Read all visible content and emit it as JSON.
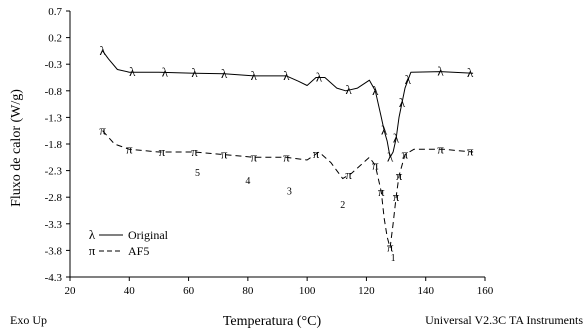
{
  "chart_data": {
    "type": "line",
    "xlabel": "Temperatura (°C)",
    "ylabel": "Fluxo de calor (W/g)",
    "xlim": [
      20,
      160
    ],
    "ylim": [
      -4.3,
      0.7
    ],
    "x_ticks": [
      20,
      40,
      60,
      80,
      100,
      120,
      140,
      160
    ],
    "y_ticks": [
      0.7,
      0.2,
      -0.3,
      -0.8,
      -1.3,
      -1.8,
      -2.3,
      -2.8,
      -3.3,
      -3.8,
      -4.3
    ],
    "grid": false,
    "legend_position": "bottom-left",
    "series": [
      {
        "name": "Original",
        "marker": "λ",
        "line_style": "solid",
        "x": [
          31,
          33,
          36,
          40,
          50,
          62,
          72,
          82,
          93,
          97,
          100,
          103,
          106,
          110,
          113,
          117,
          121,
          123,
          125,
          126,
          127,
          128,
          129,
          130,
          131,
          133,
          135,
          145,
          156
        ],
        "y": [
          -0.05,
          -0.2,
          -0.4,
          -0.45,
          -0.45,
          -0.47,
          -0.48,
          -0.52,
          -0.52,
          -0.62,
          -0.7,
          -0.55,
          -0.55,
          -0.75,
          -0.8,
          -0.75,
          -0.6,
          -0.8,
          -1.3,
          -1.55,
          -1.75,
          -2.05,
          -1.95,
          -1.7,
          -1.3,
          -0.75,
          -0.45,
          -0.44,
          -0.47
        ],
        "marker_x": [
          31,
          41,
          52,
          62,
          72,
          82,
          93,
          104,
          114,
          123,
          126,
          128,
          130,
          132,
          134,
          145,
          155
        ]
      },
      {
        "name": "AF5",
        "marker": "π",
        "line_style": "dashed",
        "x": [
          31,
          35,
          40,
          50,
          62,
          72,
          82,
          93,
          100,
          104,
          108,
          112,
          115,
          118,
          121,
          123,
          125,
          126,
          127,
          128,
          129,
          130,
          131,
          133,
          136,
          146,
          156
        ],
        "y": [
          -1.55,
          -1.8,
          -1.9,
          -1.95,
          -1.95,
          -2.0,
          -2.05,
          -2.05,
          -2.1,
          -1.95,
          -2.15,
          -2.45,
          -2.35,
          -2.2,
          -2.05,
          -2.2,
          -2.7,
          -3.2,
          -3.55,
          -3.75,
          -3.3,
          -2.8,
          -2.4,
          -2.0,
          -1.9,
          -1.9,
          -1.95
        ],
        "marker_x": [
          31,
          40,
          51,
          62,
          72,
          82,
          93,
          103,
          114,
          123,
          125,
          128,
          130,
          131,
          133,
          145,
          155
        ]
      }
    ],
    "annotations": [
      {
        "text": "1",
        "x": 129,
        "y": -4.0
      },
      {
        "text": "2",
        "x": 112,
        "y": -3.0
      },
      {
        "text": "3",
        "x": 94,
        "y": -2.75
      },
      {
        "text": "4",
        "x": 80,
        "y": -2.55
      },
      {
        "text": "5",
        "x": 63,
        "y": -2.4
      }
    ]
  },
  "footer": {
    "left": "Exo Up",
    "right": "Universal V2.3C TA Instruments"
  }
}
